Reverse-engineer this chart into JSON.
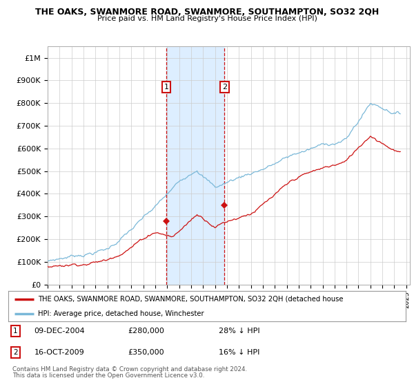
{
  "title": "THE OAKS, SWANMORE ROAD, SWANMORE, SOUTHAMPTON, SO32 2QH",
  "subtitle": "Price paid vs. HM Land Registry's House Price Index (HPI)",
  "ylabel_ticks": [
    "£0",
    "£100K",
    "£200K",
    "£300K",
    "£400K",
    "£500K",
    "£600K",
    "£700K",
    "£800K",
    "£900K",
    "£1M"
  ],
  "yvalues": [
    0,
    100000,
    200000,
    300000,
    400000,
    500000,
    600000,
    700000,
    800000,
    900000,
    1000000
  ],
  "ylim": [
    0,
    1050000
  ],
  "x_start_year": 1995,
  "x_end_year": 2025,
  "hpi_color": "#7ab8d8",
  "price_color": "#cc1111",
  "sale1_year": 2004.93,
  "sale1_price": 280000,
  "sale2_year": 2009.79,
  "sale2_price": 350000,
  "legend_property": "THE OAKS, SWANMORE ROAD, SWANMORE, SOUTHAMPTON, SO32 2QH (detached house",
  "legend_hpi": "HPI: Average price, detached house, Winchester",
  "shaded_color": "#ddeeff",
  "background_color": "#ffffff",
  "grid_color": "#cccccc",
  "footer1": "Contains HM Land Registry data © Crown copyright and database right 2024.",
  "footer2": "This data is licensed under the Open Government Licence v3.0."
}
